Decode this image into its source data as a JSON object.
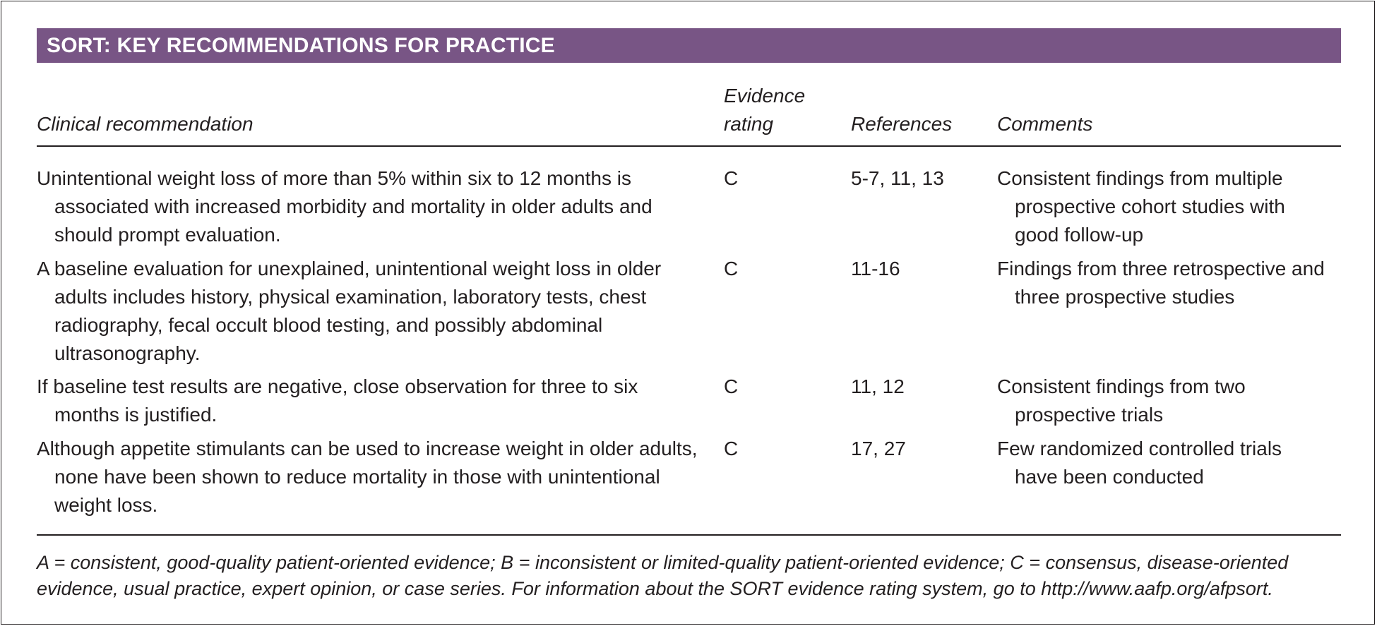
{
  "title": "SORT: KEY RECOMMENDATIONS FOR PRACTICE",
  "columns": {
    "recommendation": "Clinical recommendation",
    "evidence_line1": "Evidence",
    "evidence_line2": "rating",
    "references": "References",
    "comments": "Comments"
  },
  "rows": [
    {
      "recommendation": "Unintentional weight loss of more than 5% within six to 12 months is associated with increased morbidity and mortality in older adults and should prompt evaluation.",
      "evidence": "C",
      "references": "5-7, 11, 13",
      "comments": "Consistent findings from multiple prospective cohort studies with good follow-up"
    },
    {
      "recommendation": "A baseline evaluation for unexplained, unintentional weight loss in older adults includes history, physical examination, laboratory tests, chest radiography, fecal occult blood testing, and possibly abdominal ultrasonography.",
      "evidence": "C",
      "references": "11-16",
      "comments": "Findings from three retrospective and three prospective studies"
    },
    {
      "recommendation": "If baseline test results are negative, close observation for three to six months is justified.",
      "evidence": "C",
      "references": "11, 12",
      "comments": "Consistent findings from two prospective trials"
    },
    {
      "recommendation": "Although appetite stimulants can be used to increase weight in older adults, none have been shown to reduce mortality in those with unintentional weight loss.",
      "evidence": "C",
      "references": "17, 27",
      "comments": "Few randomized controlled trials have been conducted"
    }
  ],
  "footnote": "A = consistent, good-quality patient-oriented evidence; B = inconsistent or limited-quality patient-oriented evidence; C = consensus, disease-oriented evidence, usual practice, expert opinion, or case series. For information about the SORT evidence rating system, go to http://www.aafp.org/afpsort."
}
